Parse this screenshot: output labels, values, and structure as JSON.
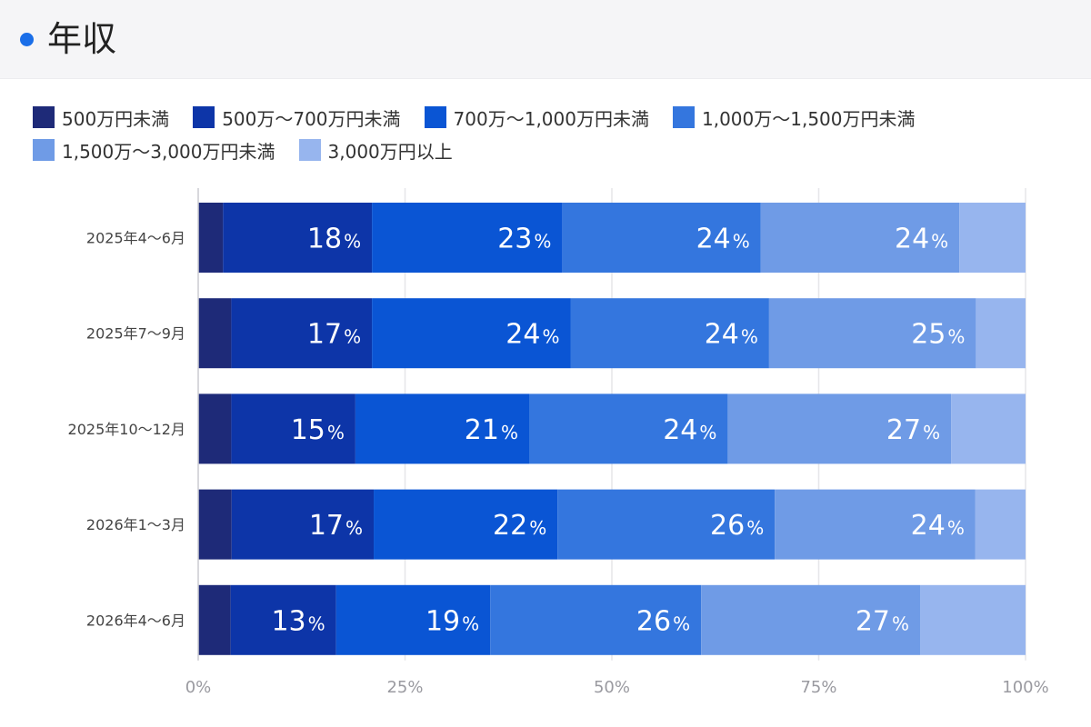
{
  "header": {
    "title": "年収"
  },
  "chart_data": {
    "type": "bar",
    "orientation": "horizontal",
    "stacked": true,
    "categories": [
      "2025年4〜6月",
      "2025年7〜9月",
      "2025年10〜12月",
      "2026年1〜3月",
      "2026年4〜6月"
    ],
    "series": [
      {
        "name": "500万円未満",
        "color": "#1e2a78",
        "values": [
          3,
          4,
          4,
          4,
          4
        ]
      },
      {
        "name": "500万〜700万円未満",
        "color": "#0d35a8",
        "values": [
          18,
          17,
          15,
          17,
          13
        ]
      },
      {
        "name": "700万〜1,000万円未満",
        "color": "#0a55d4",
        "values": [
          23,
          24,
          21,
          22,
          19
        ]
      },
      {
        "name": "1,000万〜1,500万円未満",
        "color": "#3476de",
        "values": [
          24,
          24,
          24,
          26,
          26
        ]
      },
      {
        "name": "1,500万〜3,000万円未満",
        "color": "#6f9be6",
        "values": [
          24,
          25,
          27,
          24,
          27
        ]
      },
      {
        "name": "3,000万円以上",
        "color": "#97b5ee",
        "values": [
          8,
          6,
          9,
          6,
          13
        ]
      }
    ],
    "xlim": [
      0,
      100
    ],
    "xticks": [
      "0%",
      "25%",
      "50%",
      "75%",
      "100%"
    ],
    "value_suffix": "%",
    "labeled_series": [
      1,
      2,
      3,
      4
    ],
    "grid": true,
    "legend_position": "top-left"
  }
}
